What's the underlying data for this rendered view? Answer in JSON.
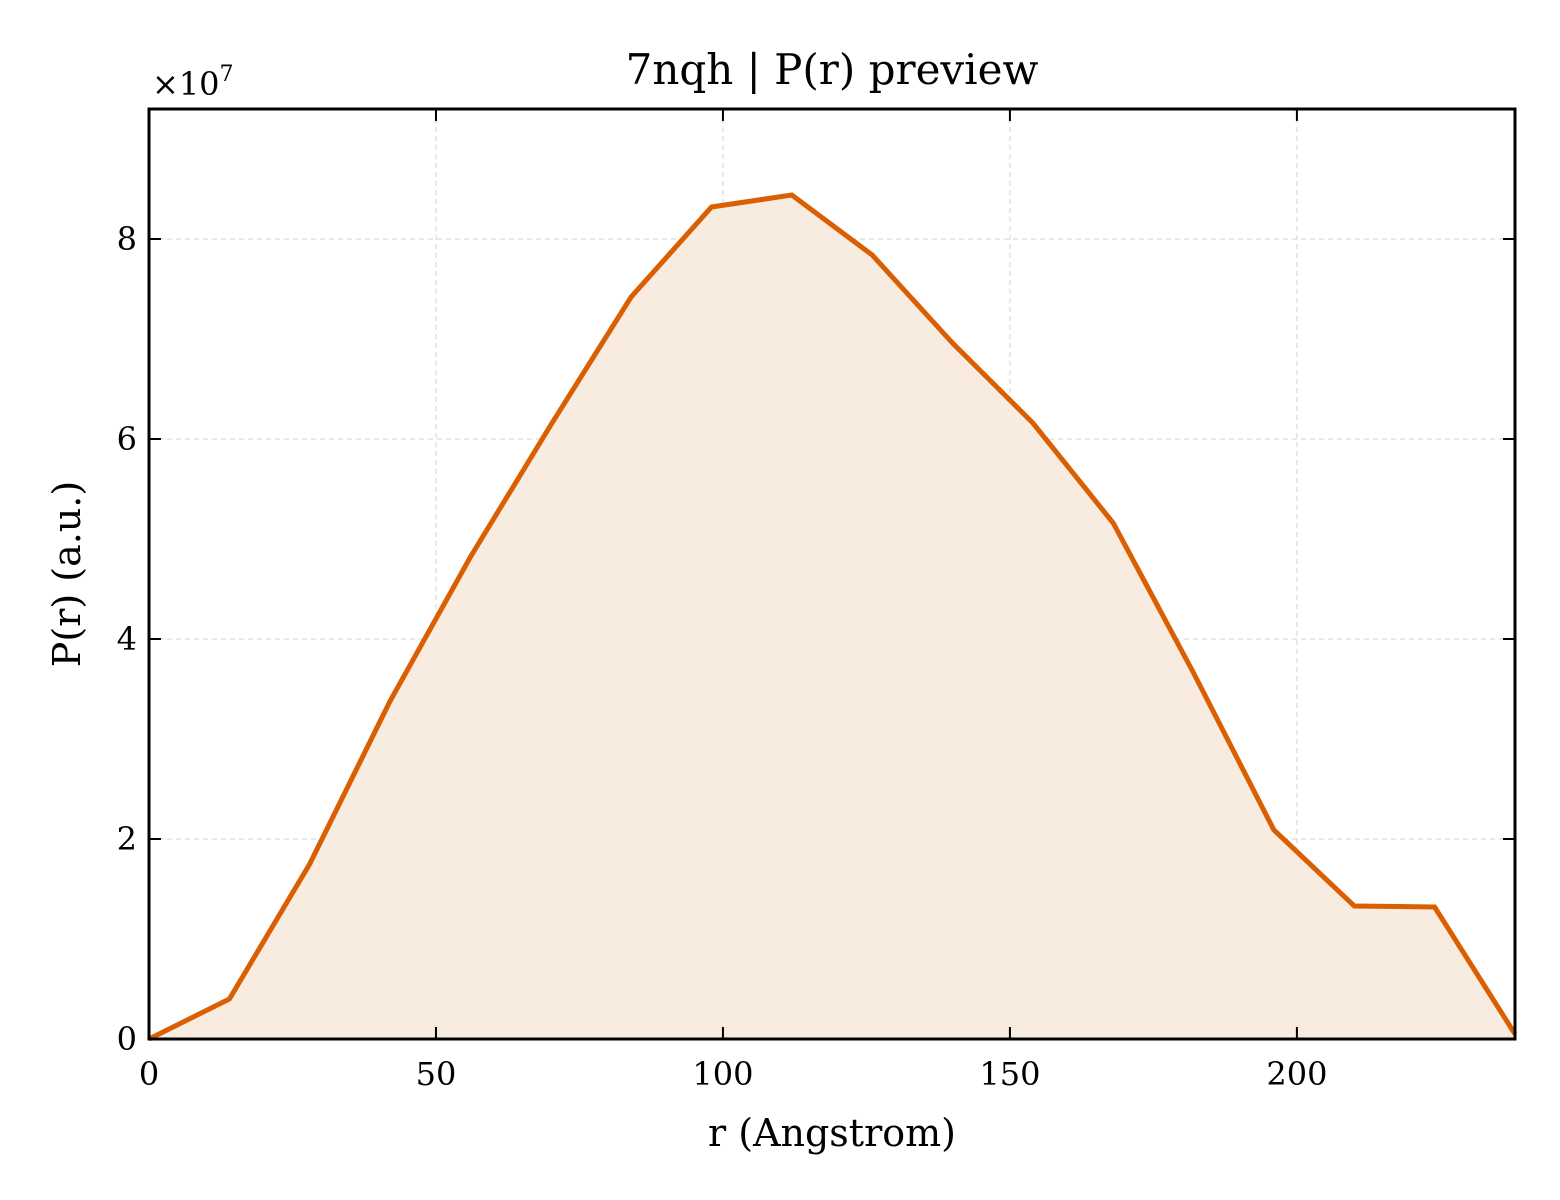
{
  "chart_data": {
    "type": "area",
    "title": "7nqh | P(r) preview",
    "xlabel": "r (Angstrom)",
    "ylabel": "P(r) (a.u.)",
    "y_offset_label": "×10",
    "y_offset_exponent": "7",
    "xlim": [
      0,
      238
    ],
    "ylim": [
      0,
      9.3
    ],
    "x_ticks": [
      0,
      50,
      100,
      150,
      200
    ],
    "y_ticks": [
      0,
      2,
      4,
      6,
      8
    ],
    "grid": true,
    "legend": "none",
    "series": [
      {
        "x": [
          0,
          14,
          28,
          42,
          56,
          70,
          84,
          98,
          112,
          126,
          140,
          154,
          168,
          182,
          196,
          210,
          224,
          238
        ],
        "y": [
          0,
          0.4,
          1.75,
          3.38,
          4.82,
          6.14,
          7.42,
          8.32,
          8.44,
          7.84,
          6.96,
          6.16,
          5.16,
          3.66,
          2.09,
          1.33,
          1.32,
          0.05
        ]
      }
    ],
    "colors": {
      "line": "#d95f02",
      "fill": "#f8ebe0",
      "grid": "#d9d9d9",
      "axes": "#000000"
    }
  }
}
